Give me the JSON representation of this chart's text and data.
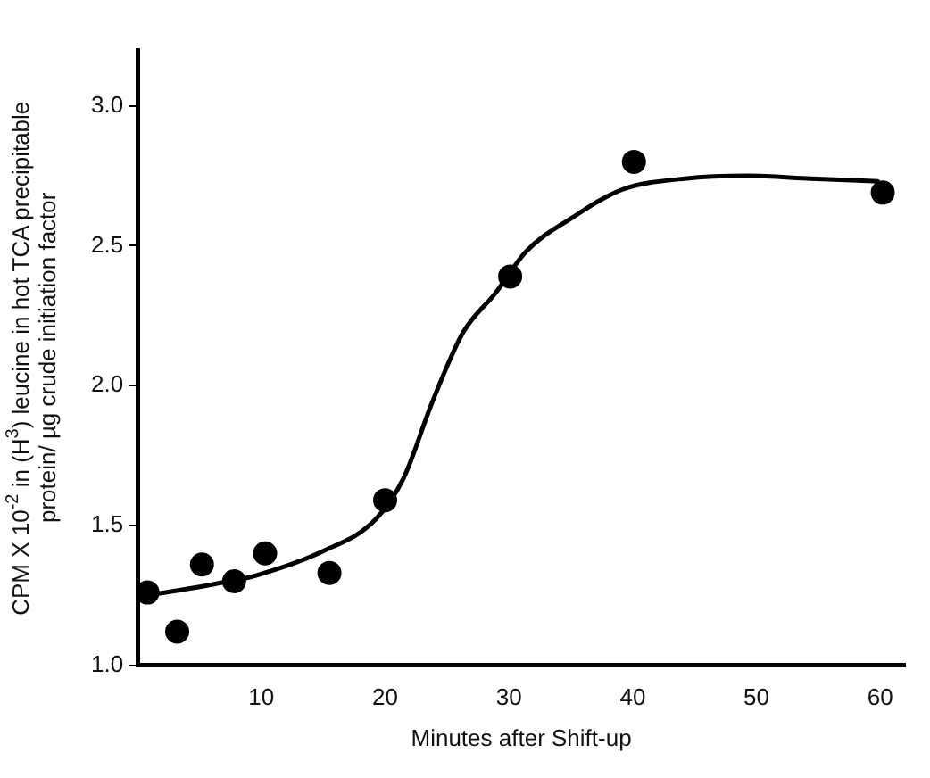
{
  "chart_data": {
    "type": "scatter",
    "xlabel": "Minutes after Shift-up",
    "ylabel": "CPM X 10$^{-2}$ in (H$^{3}$) leucine in hot TCA precipitable\nprotein/ µg crude initiation factor",
    "xlim": [
      0,
      62
    ],
    "xticks": [
      10,
      20,
      30,
      40,
      50,
      60
    ],
    "ylim": [
      1.0,
      3.2
    ],
    "yticks": [
      {
        "value": 1.0,
        "label": "1.0"
      },
      {
        "value": 1.5,
        "label": "1.5"
      },
      {
        "value": 2.0,
        "label": "2.0"
      },
      {
        "value": 2.5,
        "label": "2.5"
      },
      {
        "value": 3.0,
        "label": "3.0"
      }
    ],
    "grid": false,
    "legend": false,
    "marker": "circle",
    "series": [
      {
        "type": "scatter",
        "color": "#000000",
        "x": [
          0.8,
          3.2,
          5.2,
          7.8,
          10.3,
          15.5,
          20.0,
          30.1,
          40.1,
          60.2
        ],
        "values": [
          1.26,
          1.12,
          1.36,
          1.3,
          1.4,
          1.33,
          1.59,
          2.39,
          2.8,
          2.69
        ]
      },
      {
        "type": "line",
        "color": "#000000",
        "marker": "none",
        "line_style": "solid",
        "x": [
          0.8,
          6.2,
          9.5,
          15.1,
          19.2,
          21.5,
          23.8,
          26.3,
          28.9,
          31.4,
          35.1,
          39.1,
          44.2,
          49.3,
          54.4,
          59.8
        ],
        "values": [
          1.25,
          1.29,
          1.32,
          1.41,
          1.52,
          1.67,
          1.94,
          2.19,
          2.33,
          2.48,
          2.6,
          2.7,
          2.74,
          2.75,
          2.74,
          2.73
        ]
      }
    ]
  }
}
